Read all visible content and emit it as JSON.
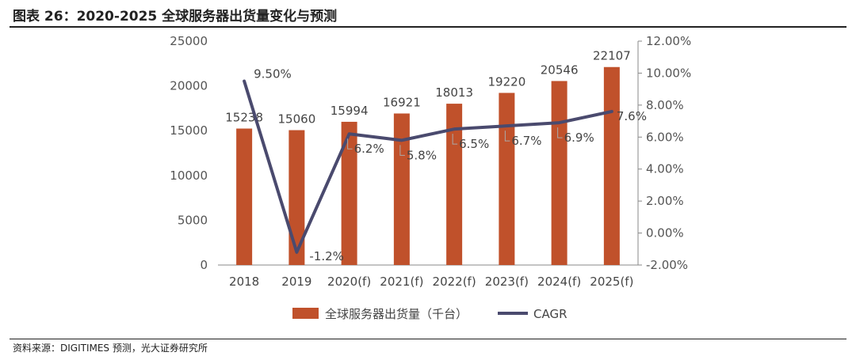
{
  "title": "图表 26：2020-2025 全球服务器出货量变化与预测",
  "source": "资料来源：DIGITIMES 预测，光大证券研究所",
  "chart_data": {
    "type": "bar",
    "categories": [
      "2018",
      "2019",
      "2020(f)",
      "2021(f)",
      "2022(f)",
      "2023(f)",
      "2024(f)",
      "2025(f)"
    ],
    "series": [
      {
        "name": "全球服务器出货量（千台）",
        "type": "bar",
        "axis": "left",
        "values": [
          15238,
          15060,
          15994,
          16921,
          18013,
          19220,
          20546,
          22107
        ],
        "labels": [
          "15238",
          "15060",
          "15994",
          "16921",
          "18013",
          "19220",
          "20546",
          "22107"
        ],
        "color": "#c0512b"
      },
      {
        "name": "CAGR",
        "type": "line",
        "axis": "right",
        "values": [
          9.5,
          -1.2,
          6.2,
          5.8,
          6.5,
          6.7,
          6.9,
          7.6
        ],
        "labels": [
          "9.50%",
          "-1.2%",
          "6.2%",
          "5.8%",
          "6.5%",
          "6.7%",
          "6.9%",
          "7.6%"
        ],
        "color": "#4a4a6e"
      }
    ],
    "y_left": {
      "min": 0,
      "max": 25000,
      "ticks": [
        0,
        5000,
        10000,
        15000,
        20000,
        25000
      ],
      "tick_labels": [
        "0",
        "5000",
        "10000",
        "15000",
        "20000",
        "25000"
      ]
    },
    "y_right": {
      "min": -2,
      "max": 12,
      "ticks": [
        -2,
        0,
        2,
        4,
        6,
        8,
        10,
        12
      ],
      "tick_labels": [
        "-2.00%",
        "0.00%",
        "2.00%",
        "4.00%",
        "6.00%",
        "8.00%",
        "10.00%",
        "12.00%"
      ]
    },
    "grid": false,
    "legend_position": "bottom"
  }
}
